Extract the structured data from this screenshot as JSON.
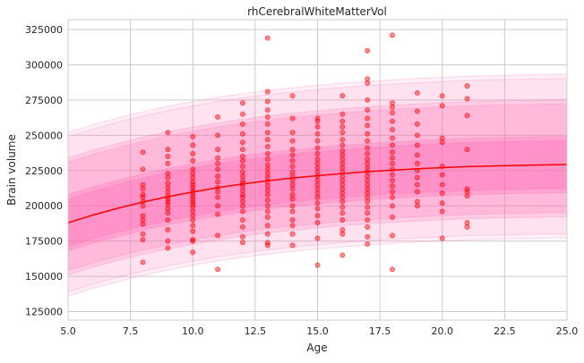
{
  "chart_data": {
    "type": "scatter",
    "title": "rhCerebralWhiteMatterVol",
    "xlabel": "Age",
    "ylabel": "Brain volume",
    "xlim": [
      5.0,
      25.0
    ],
    "ylim": [
      119000,
      332000
    ],
    "xticks": [
      5.0,
      7.5,
      10.0,
      12.5,
      15.0,
      17.5,
      20.0,
      22.5,
      25.0
    ],
    "xtick_labels": [
      "5.0",
      "7.5",
      "10.0",
      "12.5",
      "15.0",
      "17.5",
      "20.0",
      "22.5",
      "25.0"
    ],
    "yticks": [
      125000,
      150000,
      175000,
      200000,
      225000,
      250000,
      275000,
      300000,
      325000
    ],
    "ytick_labels": [
      "125000",
      "150000",
      "175000",
      "200000",
      "225000",
      "250000",
      "275000",
      "300000",
      "325000"
    ],
    "grid": true,
    "colors": {
      "line": "#ff0000",
      "points": "#ff0000",
      "band": "#ff69b4",
      "grid": "#cccccc"
    },
    "fit_line": {
      "x": [
        5,
        6,
        7,
        8,
        9,
        10,
        11,
        12,
        13,
        14,
        15,
        16,
        17,
        18,
        19,
        20,
        21,
        22,
        23,
        24,
        25
      ],
      "y": [
        188000,
        193500,
        198300,
        202700,
        206500,
        209800,
        212900,
        215500,
        217800,
        219700,
        221400,
        222900,
        224200,
        225300,
        226300,
        227100,
        227800,
        228300,
        228700,
        229000,
        229300
      ]
    },
    "centile_bands": [
      {
        "name": "outer",
        "lower_offset": -49000,
        "upper_offset": 61000,
        "opacity": 0.1
      },
      {
        "name": "middle",
        "lower_offset": -34000,
        "upper_offset": 43000,
        "opacity": 0.18
      },
      {
        "name": "inner",
        "lower_offset": -17000,
        "upper_offset": 17000,
        "opacity": 0.28
      }
    ],
    "series": [
      {
        "values": [
          [
            8,
            160000
          ],
          [
            8,
            176000
          ],
          [
            8,
            180000
          ],
          [
            8,
            187000
          ],
          [
            8,
            190000
          ],
          [
            8,
            193000
          ],
          [
            8,
            200000
          ],
          [
            8,
            203000
          ],
          [
            8,
            206000
          ],
          [
            8,
            208000
          ],
          [
            8,
            212000
          ],
          [
            8,
            215000
          ],
          [
            8,
            226000
          ],
          [
            8,
            238000
          ],
          [
            9,
            170000
          ],
          [
            9,
            175000
          ],
          [
            9,
            183000
          ],
          [
            9,
            190000
          ],
          [
            9,
            195000
          ],
          [
            9,
            198000
          ],
          [
            9,
            201000
          ],
          [
            9,
            203000
          ],
          [
            9,
            205000
          ],
          [
            9,
            207000
          ],
          [
            9,
            210000
          ],
          [
            9,
            213000
          ],
          [
            9,
            216000
          ],
          [
            9,
            220000
          ],
          [
            9,
            223000
          ],
          [
            9,
            230000
          ],
          [
            9,
            235000
          ],
          [
            9,
            240000
          ],
          [
            9,
            252000
          ],
          [
            10,
            167000
          ],
          [
            10,
            175000
          ],
          [
            10,
            176000
          ],
          [
            10,
            182000
          ],
          [
            10,
            186000
          ],
          [
            10,
            190000
          ],
          [
            10,
            193000
          ],
          [
            10,
            196000
          ],
          [
            10,
            199000
          ],
          [
            10,
            201000
          ],
          [
            10,
            203000
          ],
          [
            10,
            205000
          ],
          [
            10,
            207000
          ],
          [
            10,
            209000
          ],
          [
            10,
            211000
          ],
          [
            10,
            213000
          ],
          [
            10,
            215000
          ],
          [
            10,
            217000
          ],
          [
            10,
            220000
          ],
          [
            10,
            223000
          ],
          [
            10,
            226000
          ],
          [
            10,
            232000
          ],
          [
            10,
            237000
          ],
          [
            10,
            243000
          ],
          [
            10,
            249000
          ],
          [
            11,
            155000
          ],
          [
            11,
            179000
          ],
          [
            11,
            194000
          ],
          [
            11,
            200000
          ],
          [
            11,
            206000
          ],
          [
            11,
            210000
          ],
          [
            11,
            213000
          ],
          [
            11,
            217000
          ],
          [
            11,
            221000
          ],
          [
            11,
            226000
          ],
          [
            11,
            230000
          ],
          [
            11,
            234000
          ],
          [
            11,
            240000
          ],
          [
            11,
            250000
          ],
          [
            11,
            263000
          ],
          [
            12,
            174000
          ],
          [
            12,
            178000
          ],
          [
            12,
            185000
          ],
          [
            12,
            190000
          ],
          [
            12,
            196000
          ],
          [
            12,
            200000
          ],
          [
            12,
            203000
          ],
          [
            12,
            206000
          ],
          [
            12,
            208000
          ],
          [
            12,
            211000
          ],
          [
            12,
            214000
          ],
          [
            12,
            216000
          ],
          [
            12,
            218000
          ],
          [
            12,
            221000
          ],
          [
            12,
            224000
          ],
          [
            12,
            228000
          ],
          [
            12,
            232000
          ],
          [
            12,
            235000
          ],
          [
            12,
            240000
          ],
          [
            12,
            245000
          ],
          [
            12,
            251000
          ],
          [
            12,
            258000
          ],
          [
            12,
            265000
          ],
          [
            12,
            273000
          ],
          [
            13,
            172000
          ],
          [
            13,
            174000
          ],
          [
            13,
            180000
          ],
          [
            13,
            186000
          ],
          [
            13,
            192000
          ],
          [
            13,
            196000
          ],
          [
            13,
            200000
          ],
          [
            13,
            204000
          ],
          [
            13,
            208000
          ],
          [
            13,
            211000
          ],
          [
            13,
            214000
          ],
          [
            13,
            217000
          ],
          [
            13,
            220000
          ],
          [
            13,
            223000
          ],
          [
            13,
            226000
          ],
          [
            13,
            229000
          ],
          [
            13,
            233000
          ],
          [
            13,
            237000
          ],
          [
            13,
            242000
          ],
          [
            13,
            247000
          ],
          [
            13,
            252000
          ],
          [
            13,
            258000
          ],
          [
            13,
            263000
          ],
          [
            13,
            268000
          ],
          [
            13,
            274000
          ],
          [
            13,
            281000
          ],
          [
            13,
            319000
          ],
          [
            14,
            172000
          ],
          [
            14,
            180000
          ],
          [
            14,
            186000
          ],
          [
            14,
            190000
          ],
          [
            14,
            196000
          ],
          [
            14,
            200000
          ],
          [
            14,
            205000
          ],
          [
            14,
            208000
          ],
          [
            14,
            212000
          ],
          [
            14,
            215000
          ],
          [
            14,
            218000
          ],
          [
            14,
            221000
          ],
          [
            14,
            224000
          ],
          [
            14,
            228000
          ],
          [
            14,
            232000
          ],
          [
            14,
            236000
          ],
          [
            14,
            240000
          ],
          [
            14,
            246000
          ],
          [
            14,
            252000
          ],
          [
            14,
            262000
          ],
          [
            14,
            278000
          ],
          [
            15,
            158000
          ],
          [
            15,
            177000
          ],
          [
            15,
            188000
          ],
          [
            15,
            193000
          ],
          [
            15,
            198000
          ],
          [
            15,
            202000
          ],
          [
            15,
            206000
          ],
          [
            15,
            209000
          ],
          [
            15,
            212000
          ],
          [
            15,
            215000
          ],
          [
            15,
            218000
          ],
          [
            15,
            221000
          ],
          [
            15,
            224000
          ],
          [
            15,
            227000
          ],
          [
            15,
            230000
          ],
          [
            15,
            233000
          ],
          [
            15,
            237000
          ],
          [
            15,
            241000
          ],
          [
            15,
            246000
          ],
          [
            15,
            251000
          ],
          [
            15,
            256000
          ],
          [
            15,
            260000
          ],
          [
            15,
            262000
          ],
          [
            16,
            165000
          ],
          [
            16,
            180000
          ],
          [
            16,
            183000
          ],
          [
            16,
            190000
          ],
          [
            16,
            195000
          ],
          [
            16,
            199000
          ],
          [
            16,
            203000
          ],
          [
            16,
            206000
          ],
          [
            16,
            209000
          ],
          [
            16,
            212000
          ],
          [
            16,
            215000
          ],
          [
            16,
            218000
          ],
          [
            16,
            221000
          ],
          [
            16,
            224000
          ],
          [
            16,
            227000
          ],
          [
            16,
            230000
          ],
          [
            16,
            233000
          ],
          [
            16,
            236000
          ],
          [
            16,
            239000
          ],
          [
            16,
            243000
          ],
          [
            16,
            247000
          ],
          [
            16,
            252000
          ],
          [
            16,
            256000
          ],
          [
            16,
            260000
          ],
          [
            16,
            265000
          ],
          [
            16,
            278000
          ],
          [
            17,
            173000
          ],
          [
            17,
            178000
          ],
          [
            17,
            185000
          ],
          [
            17,
            190000
          ],
          [
            17,
            195000
          ],
          [
            17,
            199000
          ],
          [
            17,
            203000
          ],
          [
            17,
            206000
          ],
          [
            17,
            209000
          ],
          [
            17,
            212000
          ],
          [
            17,
            215000
          ],
          [
            17,
            218000
          ],
          [
            17,
            221000
          ],
          [
            17,
            224000
          ],
          [
            17,
            227000
          ],
          [
            17,
            230000
          ],
          [
            17,
            233000
          ],
          [
            17,
            237000
          ],
          [
            17,
            241000
          ],
          [
            17,
            246000
          ],
          [
            17,
            251000
          ],
          [
            17,
            257000
          ],
          [
            17,
            262000
          ],
          [
            17,
            268000
          ],
          [
            17,
            275000
          ],
          [
            17,
            287000
          ],
          [
            17,
            290000
          ],
          [
            17,
            310000
          ],
          [
            18,
            155000
          ],
          [
            18,
            179000
          ],
          [
            18,
            192000
          ],
          [
            18,
            200000
          ],
          [
            18,
            206000
          ],
          [
            18,
            210000
          ],
          [
            18,
            214000
          ],
          [
            18,
            218000
          ],
          [
            18,
            222000
          ],
          [
            18,
            226000
          ],
          [
            18,
            230000
          ],
          [
            18,
            234000
          ],
          [
            18,
            238000
          ],
          [
            18,
            243000
          ],
          [
            18,
            248000
          ],
          [
            18,
            254000
          ],
          [
            18,
            260000
          ],
          [
            18,
            266000
          ],
          [
            18,
            270000
          ],
          [
            18,
            273000
          ],
          [
            18,
            321000
          ],
          [
            19,
            200000
          ],
          [
            19,
            203000
          ],
          [
            19,
            210000
          ],
          [
            19,
            215000
          ],
          [
            19,
            220000
          ],
          [
            19,
            225000
          ],
          [
            19,
            230000
          ],
          [
            19,
            236000
          ],
          [
            19,
            243000
          ],
          [
            19,
            250000
          ],
          [
            19,
            258000
          ],
          [
            19,
            267000
          ],
          [
            19,
            280000
          ],
          [
            20,
            177000
          ],
          [
            20,
            196000
          ],
          [
            20,
            202000
          ],
          [
            20,
            209000
          ],
          [
            20,
            215000
          ],
          [
            20,
            222000
          ],
          [
            20,
            228000
          ],
          [
            20,
            245000
          ],
          [
            20,
            248000
          ],
          [
            20,
            271000
          ],
          [
            20,
            278000
          ],
          [
            21,
            185000
          ],
          [
            21,
            188000
          ],
          [
            21,
            207000
          ],
          [
            21,
            210000
          ],
          [
            21,
            212000
          ],
          [
            21,
            240000
          ],
          [
            21,
            264000
          ],
          [
            21,
            276000
          ],
          [
            21,
            285000
          ]
        ]
      }
    ]
  }
}
